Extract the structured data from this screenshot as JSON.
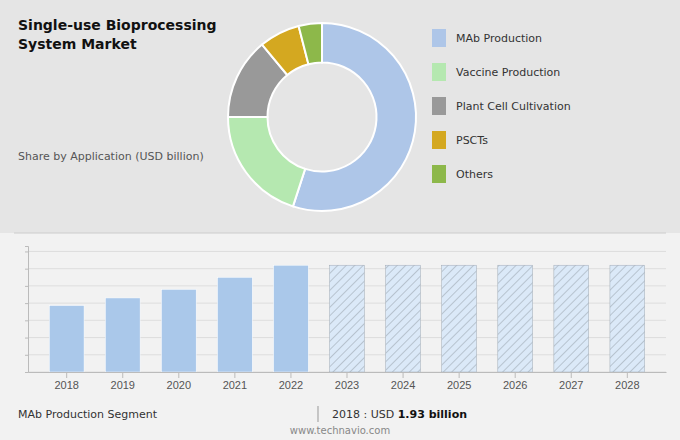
{
  "chart_data": [
    {
      "type": "pie",
      "title": "Single-use Bioprocessing\nSystem Market",
      "subtitle": "Share by Application (USD billion)",
      "categories": [
        "MAb Production",
        "Vaccine Production",
        "Plant Cell Cultivation",
        "PSCTs",
        "Others"
      ],
      "values": [
        55,
        20,
        14,
        7,
        4
      ],
      "colors": [
        "#aec6e8",
        "#b5e8b0",
        "#999999",
        "#d4a820",
        "#8db84a"
      ],
      "legend": "right"
    },
    {
      "type": "bar",
      "categories": [
        "2018",
        "2019",
        "2020",
        "2021",
        "2022",
        "2023",
        "2024",
        "2025",
        "2026",
        "2027",
        "2028"
      ],
      "series": [
        {
          "color": "#aac8ea",
          "values": [
            1.93,
            2.15,
            2.4,
            2.75,
            3.1,
            null,
            null,
            null,
            null,
            null,
            null
          ]
        },
        {
          "color": "#dbe9f8",
          "values": [
            null,
            null,
            null,
            null,
            null,
            3.1,
            3.1,
            3.1,
            3.1,
            3.1,
            3.1
          ]
        }
      ],
      "ylim": [
        0,
        3.658
      ],
      "yticks": [
        0,
        0.5,
        1,
        1.5,
        2,
        2.5,
        3,
        3.5
      ],
      "grid": true,
      "tick_labels": "x",
      "annotations": [
        "MAb Production Segment",
        "2018 : USD ",
        "1.93 billion",
        "www.technavio.com"
      ]
    }
  ]
}
